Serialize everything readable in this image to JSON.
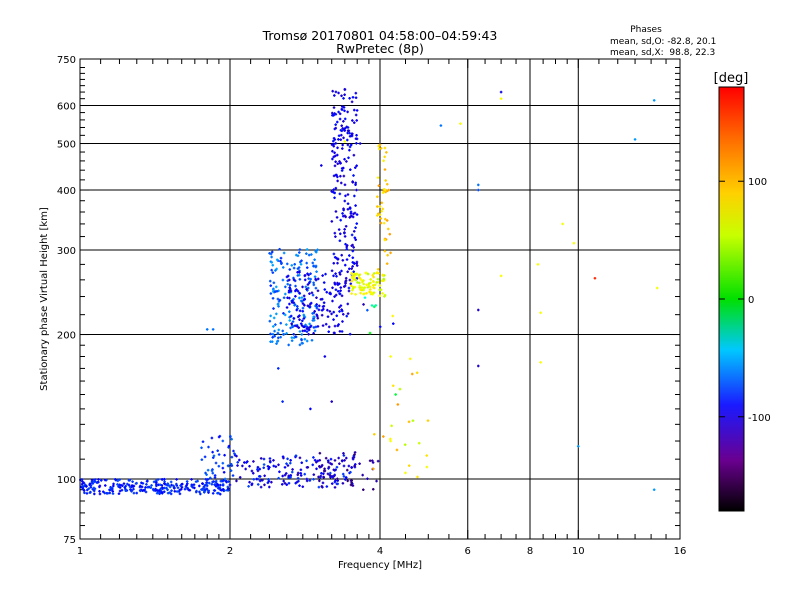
{
  "chart_data": {
    "type": "scatter",
    "title": "Tromsø 20170801 04:58:00–04:59:43",
    "subtitle": "RwPretec (8p)",
    "xlabel": "Frequency [MHz]",
    "ylabel": "Stationary phase Virtual Height [km]",
    "x_scale": "log",
    "y_scale": "log",
    "xlim": [
      1,
      16
    ],
    "ylim": [
      75,
      750
    ],
    "x_ticks": [
      1,
      2,
      4,
      6,
      8,
      10,
      16
    ],
    "x_tick_labels": [
      "1",
      "2",
      "4",
      "6",
      "8",
      "10",
      "16"
    ],
    "x_grid": [
      2,
      4,
      6,
      8,
      10
    ],
    "x_minor_ticks": [
      1.1,
      1.2,
      1.3,
      1.4,
      1.5,
      1.6,
      1.7,
      1.8,
      1.9,
      2.2,
      2.4,
      2.6,
      2.8,
      3,
      3.2,
      3.4,
      3.6,
      3.8,
      4.5,
      5,
      5.5,
      6.5,
      7,
      7.5,
      8.5,
      9,
      9.5,
      11,
      12,
      13,
      14,
      15
    ],
    "y_ticks": [
      75,
      100,
      200,
      300,
      400,
      500,
      600,
      750
    ],
    "y_tick_labels": [
      "75",
      "100",
      "200",
      "300",
      "400",
      "500",
      "600",
      "750"
    ],
    "y_grid": [
      100,
      200,
      300,
      400,
      500,
      600
    ],
    "y_minor_ticks": [
      80,
      85,
      90,
      95,
      110,
      120,
      130,
      140,
      150,
      160,
      170,
      180,
      190,
      220,
      240,
      260,
      280,
      320,
      340,
      360,
      380,
      420,
      440,
      460,
      480,
      520,
      540,
      560,
      580,
      620,
      640,
      660,
      680,
      700,
      720
    ],
    "phase_box": {
      "heading": "Phases",
      "line_o": "mean, sd,O: -82.8, 20.1",
      "line_x": "mean, sd,X:  98.8, 22.3"
    },
    "colorbar": {
      "label": "[deg]",
      "range": [
        -180,
        180
      ],
      "ticks": [
        -100,
        0,
        100
      ],
      "tick_labels": [
        "-100",
        "0",
        "100"
      ]
    },
    "point_clusters": [
      {
        "x": [
          1.0,
          2.0
        ],
        "y": [
          93,
          100
        ],
        "phase": [
          -95,
          -70
        ],
        "n": 280
      },
      {
        "x": [
          1.75,
          2.05
        ],
        "y": [
          100,
          123
        ],
        "phase": [
          -90,
          -60
        ],
        "n": 45
      },
      {
        "x": [
          2.05,
          3.6
        ],
        "y": [
          96,
          112
        ],
        "phase": [
          -120,
          -70
        ],
        "n": 170
      },
      {
        "x": [
          3.0,
          4.0
        ],
        "y": [
          95,
          115
        ],
        "phase": [
          -145,
          -110
        ],
        "n": 40
      },
      {
        "x": [
          2.4,
          3.0
        ],
        "y": [
          190,
          305
        ],
        "phase": [
          -80,
          -45
        ],
        "n": 190
      },
      {
        "x": [
          2.6,
          3.5
        ],
        "y": [
          200,
          270
        ],
        "phase": [
          -110,
          -85
        ],
        "n": 160
      },
      {
        "x": [
          3.2,
          3.6
        ],
        "y": [
          260,
          650
        ],
        "phase": [
          -110,
          -85
        ],
        "n": 210
      },
      {
        "x": [
          3.5,
          4.1
        ],
        "y": [
          240,
          270
        ],
        "phase": [
          90,
          120
        ],
        "n": 90
      },
      {
        "x": [
          3.95,
          4.2
        ],
        "y": [
          270,
          500
        ],
        "phase": [
          115,
          140
        ],
        "n": 45
      },
      {
        "x": [
          3.8,
          5.0
        ],
        "y": [
          95,
          180
        ],
        "phase": [
          90,
          140
        ],
        "n": 20
      },
      {
        "x": [
          3.7,
          4.3
        ],
        "y": [
          195,
          240
        ],
        "phase": [
          -140,
          130
        ],
        "n": 10
      }
    ],
    "sparse_points": [
      {
        "x": 5.3,
        "y": 545,
        "phase": -60
      },
      {
        "x": 5.8,
        "y": 550,
        "phase": 110
      },
      {
        "x": 6.3,
        "y": 410,
        "phase": -60
      },
      {
        "x": 6.3,
        "y": 400,
        "phase": -70
      },
      {
        "x": 6.3,
        "y": 225,
        "phase": -110
      },
      {
        "x": 6.3,
        "y": 172,
        "phase": -110
      },
      {
        "x": 7.0,
        "y": 640,
        "phase": -100
      },
      {
        "x": 7.0,
        "y": 620,
        "phase": 110
      },
      {
        "x": 7.0,
        "y": 265,
        "phase": 110
      },
      {
        "x": 8.3,
        "y": 280,
        "phase": 110
      },
      {
        "x": 8.4,
        "y": 222,
        "phase": 110
      },
      {
        "x": 8.4,
        "y": 175,
        "phase": 110
      },
      {
        "x": 9.3,
        "y": 340,
        "phase": 110
      },
      {
        "x": 9.8,
        "y": 310,
        "phase": 110
      },
      {
        "x": 10.0,
        "y": 117,
        "phase": -50
      },
      {
        "x": 10.8,
        "y": 262,
        "phase": 170
      },
      {
        "x": 13.0,
        "y": 510,
        "phase": -50
      },
      {
        "x": 14.2,
        "y": 615,
        "phase": -50
      },
      {
        "x": 14.4,
        "y": 250,
        "phase": 110
      },
      {
        "x": 14.2,
        "y": 95,
        "phase": -50
      },
      {
        "x": 1.8,
        "y": 205,
        "phase": -60
      },
      {
        "x": 1.85,
        "y": 205,
        "phase": -60
      },
      {
        "x": 3.05,
        "y": 450,
        "phase": -100
      },
      {
        "x": 3.3,
        "y": 510,
        "phase": -90
      },
      {
        "x": 3.4,
        "y": 505,
        "phase": 110
      },
      {
        "x": 3.65,
        "y": 500,
        "phase": -100
      },
      {
        "x": 2.5,
        "y": 170,
        "phase": -80
      },
      {
        "x": 2.55,
        "y": 145,
        "phase": -80
      },
      {
        "x": 2.9,
        "y": 140,
        "phase": -90
      },
      {
        "x": 3.1,
        "y": 180,
        "phase": -100
      },
      {
        "x": 3.2,
        "y": 145,
        "phase": -110
      },
      {
        "x": 4.2,
        "y": 180,
        "phase": 110
      },
      {
        "x": 4.6,
        "y": 178,
        "phase": 115
      },
      {
        "x": 4.3,
        "y": 150,
        "phase": 30
      },
      {
        "x": 4.2,
        "y": 120,
        "phase": 110
      },
      {
        "x": 4.5,
        "y": 103,
        "phase": 110
      }
    ]
  }
}
